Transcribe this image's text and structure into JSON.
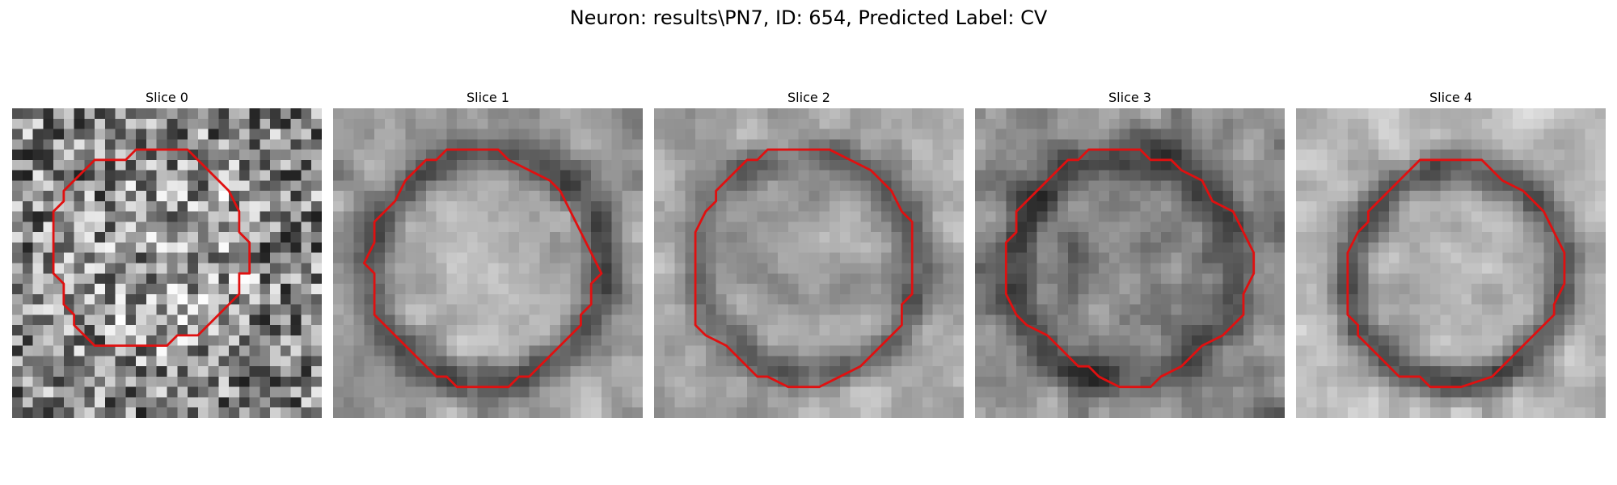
{
  "figure": {
    "title": "Neuron: results\\PN7, ID: 654, Predicted Label: CV"
  },
  "slices": [
    {
      "label": "Slice 0"
    },
    {
      "label": "Slice 1"
    },
    {
      "label": "Slice 2"
    },
    {
      "label": "Slice 3"
    },
    {
      "label": "Slice 4"
    }
  ],
  "colors": {
    "contour": "#e01010",
    "background": "#ffffff"
  }
}
